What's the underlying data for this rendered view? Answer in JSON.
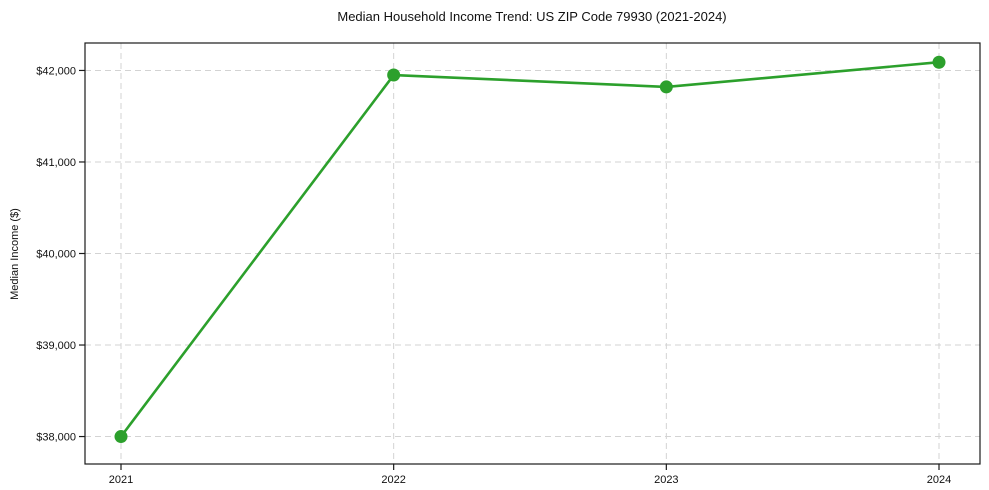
{
  "chart_data": {
    "type": "line",
    "title": "Median Household Income Trend: US ZIP Code 79930 (2021-2024)",
    "xlabel": "",
    "ylabel": "Median Income ($)",
    "categories": [
      "2021",
      "2022",
      "2023",
      "2024"
    ],
    "values": [
      38000,
      41950,
      41820,
      42090
    ],
    "y_ticks": [
      38000,
      39000,
      40000,
      41000,
      42000
    ],
    "y_tick_labels": [
      "$38,000",
      "$39,000",
      "$40,000",
      "$41,000",
      "$42,000"
    ],
    "ylim": [
      37700,
      42300
    ],
    "grid": "on",
    "grid_style": "dashed",
    "legend": "none",
    "line_color": "#2ca02c",
    "marker_color": "#2ca02c",
    "grid_color": "#d3d3d3",
    "axis_color": "#1a1a1a",
    "text_color": "#111111"
  }
}
